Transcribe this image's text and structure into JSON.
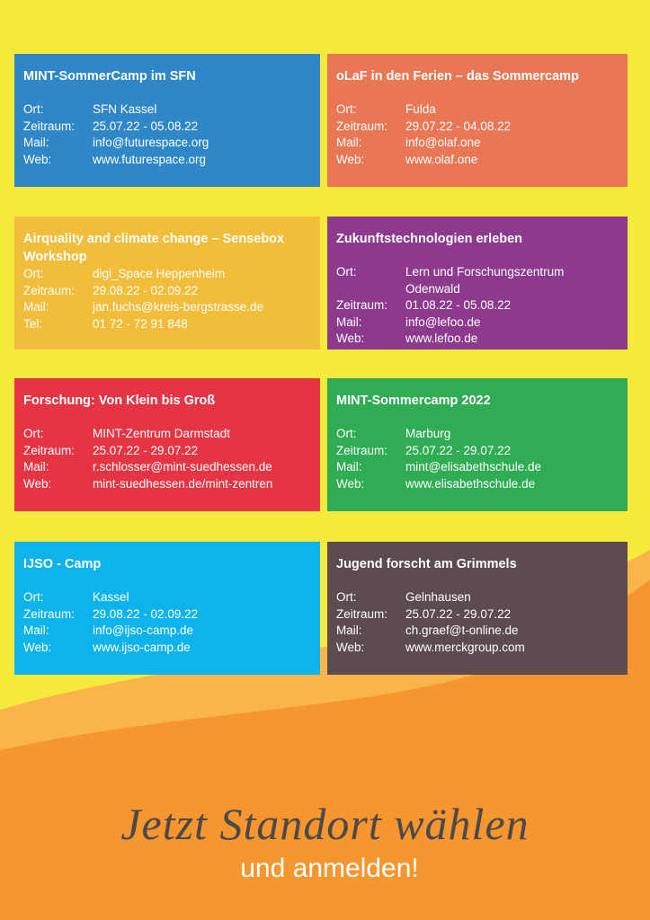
{
  "cards": [
    {
      "title": "MINT-SommerCamp im SFN",
      "color": "#2f87c8",
      "rows": [
        [
          "Ort:",
          "SFN Kassel"
        ],
        [
          "Zeitraum:",
          "25.07.22 - 05.08.22"
        ],
        [
          "Mail:",
          "info@futurespace.org"
        ],
        [
          "Web:",
          "www.futurespace.org"
        ]
      ]
    },
    {
      "title": "oLaF in den Ferien – das Sommercamp",
      "color": "#e97654",
      "rows": [
        [
          "Ort:",
          "Fulda"
        ],
        [
          "Zeitraum:",
          "29.07.22 - 04.08.22"
        ],
        [
          "Mail:",
          "info@olaf.one"
        ],
        [
          "Web:",
          "www.olaf.one"
        ]
      ]
    },
    {
      "title": "Airquality and climate change – Sensebox Workshop",
      "color": "#f2bd3b",
      "rows": [
        [
          "Ort:",
          "digi_Space Heppenheim"
        ],
        [
          "Zeitraum:",
          "29.08.22 - 02.09.22"
        ],
        [
          "Mail:",
          "jan.fuchs@kreis-bergstrasse.de"
        ],
        [
          "Tel:",
          "01 72 - 72 91 848"
        ]
      ]
    },
    {
      "title": "Zukunftstechnologien erleben",
      "color": "#8d3a8e",
      "rows": [
        [
          "Ort:",
          "Lern und Forschungszentrum Odenwald"
        ],
        [
          "Zeitraum:",
          "01.08.22 - 05.08.22"
        ],
        [
          "Mail:",
          "info@lefoo.de"
        ],
        [
          "Web:",
          "www.lefoo.de"
        ]
      ]
    },
    {
      "title": "Forschung: Von Klein bis Groß",
      "color": "#e53545",
      "rows": [
        [
          "Ort:",
          "MINT-Zentrum Darmstadt"
        ],
        [
          "Zeitraum:",
          "25.07.22 - 29.07.22"
        ],
        [
          "Mail:",
          "r.schlosser@mint-suedhessen.de"
        ],
        [
          "Web:",
          "mint-suedhessen.de/mint-zentren"
        ]
      ]
    },
    {
      "title": "MINT-Sommercamp 2022",
      "color": "#30ad54",
      "rows": [
        [
          "Ort:",
          "Marburg"
        ],
        [
          "Zeitraum:",
          "25.07.22 - 29.07.22"
        ],
        [
          "Mail:",
          "mint@elisabethschule.de"
        ],
        [
          "Web:",
          "www.elisabethschule.de"
        ]
      ]
    },
    {
      "title": "IJSO - Camp",
      "color": "#0db3ea",
      "rows": [
        [
          "Ort:",
          "Kassel"
        ],
        [
          "Zeitraum:",
          "29.08.22 -  02.09.22"
        ],
        [
          "Mail:",
          "info@ijso-camp.de"
        ],
        [
          "Web:",
          "www.ijso-camp.de"
        ]
      ]
    },
    {
      "title": "Jugend forscht am Grimmels",
      "color": "#5c4b51",
      "rows": [
        [
          "Ort:",
          "Gelnhausen"
        ],
        [
          "Zeitraum:",
          "25.07.22 - 29.07.22"
        ],
        [
          "Mail:",
          "ch.graef@t-online.de"
        ],
        [
          "Web:",
          "www.merckgroup.com"
        ]
      ]
    }
  ],
  "footer": {
    "script": "Jetzt Standort wählen",
    "line": "und anmelden!"
  }
}
